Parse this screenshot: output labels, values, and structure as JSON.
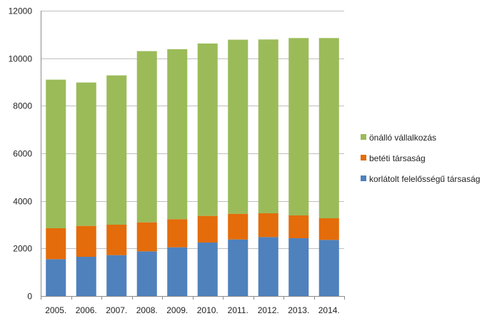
{
  "chart_data": {
    "type": "bar",
    "stacked": true,
    "title": "",
    "xlabel": "",
    "ylabel": "",
    "ylim": [
      0,
      12000
    ],
    "yticks": [
      0,
      2000,
      4000,
      6000,
      8000,
      10000,
      12000
    ],
    "grid": true,
    "legend_position": "right",
    "categories": [
      "2005.",
      "2006.",
      "2007.",
      "2008.",
      "2009.",
      "2010.",
      "2011.",
      "2012.",
      "2013.",
      "2014."
    ],
    "series": [
      {
        "name": "korlátolt felelősségű társaság",
        "color": "#4f81bd",
        "values": [
          1550,
          1650,
          1720,
          1880,
          2050,
          2250,
          2380,
          2480,
          2430,
          2360
        ]
      },
      {
        "name": "betéti társaság",
        "color": "#e46c0a",
        "values": [
          1300,
          1300,
          1280,
          1220,
          1180,
          1120,
          1080,
          1000,
          960,
          910
        ]
      },
      {
        "name": "önálló vállalkozás",
        "color": "#9bbb59",
        "values": [
          6250,
          6030,
          6280,
          7200,
          7150,
          7250,
          7320,
          7310,
          7460,
          7580
        ]
      }
    ],
    "legend_order": [
      "önálló vállalkozás",
      "betéti társaság",
      "korlátolt felelősségű társaság"
    ]
  }
}
